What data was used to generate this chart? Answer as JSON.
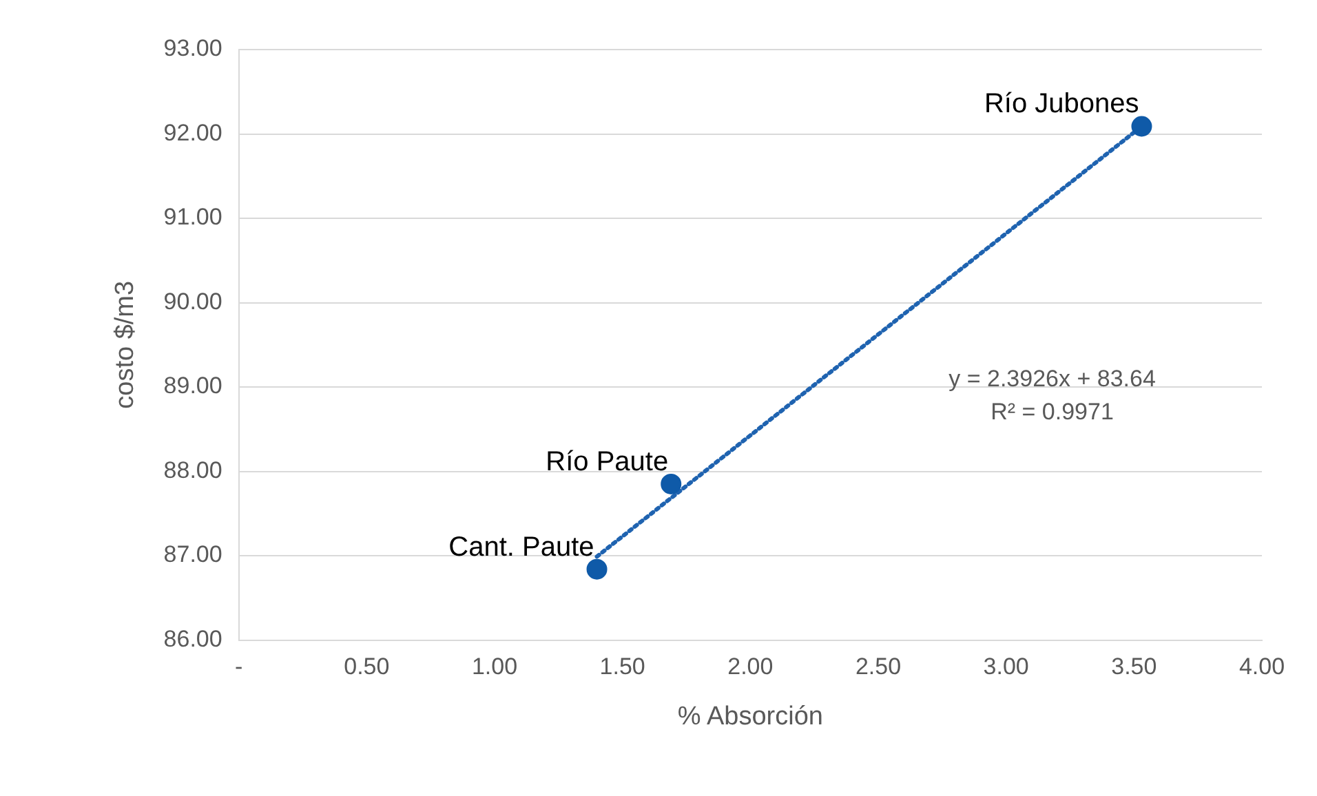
{
  "chart_data": {
    "type": "scatter",
    "xlabel": "% Absorción",
    "ylabel": "costo $/m3",
    "series": [
      {
        "type": "scatter",
        "color": "#0f5aa8",
        "x": [
          1.4,
          1.69,
          3.53
        ],
        "values": [
          86.84,
          87.85,
          92.09
        ]
      },
      {
        "type": "line",
        "color": "#1f63b0",
        "line_style": "dotted",
        "marker": "none",
        "x": [
          1.4,
          3.53
        ],
        "values": [
          86.99,
          92.09
        ]
      }
    ],
    "xlim": [
      0,
      4
    ],
    "xticks": [
      {
        "value": 0,
        "label": "-"
      },
      {
        "value": 0.5,
        "label": "0.50"
      },
      {
        "value": 1,
        "label": "1.00"
      },
      {
        "value": 1.5,
        "label": "1.50"
      },
      {
        "value": 2,
        "label": "2.00"
      },
      {
        "value": 2.5,
        "label": "2.50"
      },
      {
        "value": 3,
        "label": "3.00"
      },
      {
        "value": 3.5,
        "label": "3.50"
      },
      {
        "value": 4,
        "label": "4.00"
      }
    ],
    "ylim": [
      86,
      93
    ],
    "yticks": [
      {
        "value": 86,
        "label": "86.00"
      },
      {
        "value": 87,
        "label": "87.00"
      },
      {
        "value": 88,
        "label": "88.00"
      },
      {
        "value": 89,
        "label": "89.00"
      },
      {
        "value": 90,
        "label": "90.00"
      },
      {
        "value": 91,
        "label": "91.00"
      },
      {
        "value": 92,
        "label": "92.00"
      },
      {
        "value": 93,
        "label": "93.00"
      }
    ],
    "grid": "y",
    "legend": false,
    "marker": "circle",
    "annotations": [
      {
        "text": "Cant. Paute",
        "x": 1.4,
        "y": 86.84
      },
      {
        "text": "Río Paute",
        "x": 1.69,
        "y": 87.85
      },
      {
        "text": "Río Jubones",
        "x": 3.53,
        "y": 92.09
      },
      "y = 2.3926x + 83.64",
      "R² = 0.9971"
    ]
  }
}
